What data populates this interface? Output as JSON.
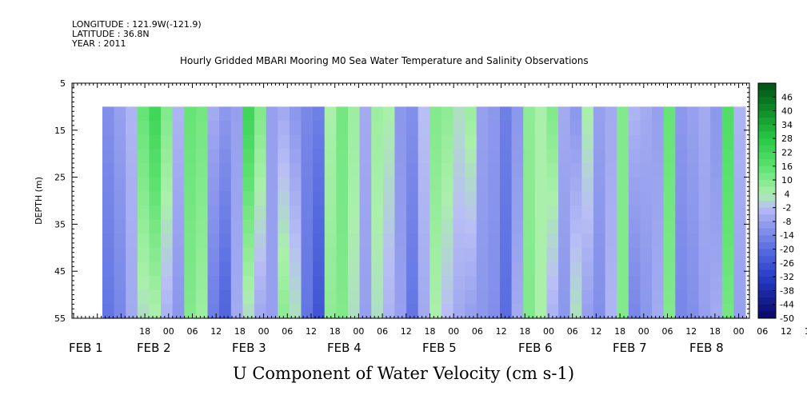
{
  "header": {
    "longitude": "LONGITUDE : 121.9W(-121.9)",
    "latitude": "LATITUDE : 36.8N",
    "year": "YEAR : 2011"
  },
  "chart_data": {
    "type": "heatmap",
    "title": "Hourly Gridded MBARI Mooring M0 Sea Water Temperature and Salinity Observations",
    "xlabel": "U Component of Water Velocity (cm s-1)",
    "ylabel": "DEPTH (m)",
    "y_ticks": [
      "5",
      "15",
      "25",
      "35",
      "45",
      "55"
    ],
    "ylim": [
      5,
      55
    ],
    "y_inverted": true,
    "x_hour_ticks": [
      "18",
      "00",
      "06",
      "12",
      "18",
      "00",
      "06",
      "12",
      "18",
      "00",
      "06",
      "12",
      "18",
      "00",
      "06",
      "12",
      "18",
      "00",
      "06",
      "12",
      "18",
      "00",
      "06",
      "12",
      "18",
      "00",
      "06",
      "12",
      "18",
      "00",
      "06",
      "12"
    ],
    "x_date_labels": [
      "FEB  1",
      "FEB  2",
      "FEB  3",
      "FEB  4",
      "FEB  5",
      "FEB  6",
      "FEB  7",
      "FEB  8"
    ],
    "colorbar_ticks": [
      "46",
      "40",
      "34",
      "28",
      "22",
      "16",
      "10",
      "4",
      "-2",
      "-8",
      "-14",
      "-20",
      "-26",
      "-32",
      "-38",
      "-44",
      "-50"
    ],
    "colorbar_range": [
      -50,
      52
    ],
    "data_depth_range": [
      10,
      55
    ],
    "columns": [
      {
        "time": "FEB 1 19:00",
        "u_top": -12,
        "u_bottom": -18
      },
      {
        "time": "FEB 1 22:00",
        "u_top": -8,
        "u_bottom": -14
      },
      {
        "time": "FEB 2 01:00",
        "u_top": -4,
        "u_bottom": -6
      },
      {
        "time": "FEB 2 04:00",
        "u_top": 14,
        "u_bottom": 2
      },
      {
        "time": "FEB 2 07:00",
        "u_top": 22,
        "u_bottom": 4
      },
      {
        "time": "FEB 2 10:00",
        "u_top": 10,
        "u_bottom": -4
      },
      {
        "time": "FEB 2 13:00",
        "u_top": -4,
        "u_bottom": -10
      },
      {
        "time": "FEB 2 16:00",
        "u_top": 14,
        "u_bottom": 10
      },
      {
        "time": "FEB 2 19:00",
        "u_top": 12,
        "u_bottom": 6
      },
      {
        "time": "FEB 2 22:00",
        "u_top": -6,
        "u_bottom": -16
      },
      {
        "time": "FEB 3 01:00",
        "u_top": -10,
        "u_bottom": -22
      },
      {
        "time": "FEB 3 04:00",
        "u_top": -8,
        "u_bottom": -6
      },
      {
        "time": "FEB 3 07:00",
        "u_top": 22,
        "u_bottom": 2
      },
      {
        "time": "FEB 3 10:00",
        "u_top": 10,
        "u_bottom": -6
      },
      {
        "time": "FEB 3 13:00",
        "u_top": -8,
        "u_bottom": -8
      },
      {
        "time": "FEB 3 16:00",
        "u_top": -6,
        "u_bottom": 8
      },
      {
        "time": "FEB 3 19:00",
        "u_top": -10,
        "u_bottom": 2
      },
      {
        "time": "FEB 3 22:00",
        "u_top": -14,
        "u_bottom": -18
      },
      {
        "time": "FEB 4 01:00",
        "u_top": -16,
        "u_bottom": -26
      },
      {
        "time": "FEB 4 04:00",
        "u_top": 4,
        "u_bottom": 8
      },
      {
        "time": "FEB 4 07:00",
        "u_top": 12,
        "u_bottom": 10
      },
      {
        "time": "FEB 4 10:00",
        "u_top": 6,
        "u_bottom": 2
      },
      {
        "time": "FEB 4 13:00",
        "u_top": -6,
        "u_bottom": -8
      },
      {
        "time": "FEB 4 16:00",
        "u_top": 6,
        "u_bottom": 2
      },
      {
        "time": "FEB 4 19:00",
        "u_top": 4,
        "u_bottom": -4
      },
      {
        "time": "FEB 4 22:00",
        "u_top": -10,
        "u_bottom": -8
      },
      {
        "time": "FEB 5 01:00",
        "u_top": -12,
        "u_bottom": -18
      },
      {
        "time": "FEB 5 04:00",
        "u_top": -2,
        "u_bottom": -6
      },
      {
        "time": "FEB 5 07:00",
        "u_top": 10,
        "u_bottom": 4
      },
      {
        "time": "FEB 5 10:00",
        "u_top": 8,
        "u_bottom": -2
      },
      {
        "time": "FEB 5 13:00",
        "u_top": 2,
        "u_bottom": -6
      },
      {
        "time": "FEB 5 16:00",
        "u_top": 6,
        "u_bottom": -8
      },
      {
        "time": "FEB 5 19:00",
        "u_top": -8,
        "u_bottom": -10
      },
      {
        "time": "FEB 5 22:00",
        "u_top": -10,
        "u_bottom": -12
      },
      {
        "time": "FEB 6 01:00",
        "u_top": -16,
        "u_bottom": -20
      },
      {
        "time": "FEB 6 04:00",
        "u_top": -10,
        "u_bottom": -6
      },
      {
        "time": "FEB 6 07:00",
        "u_top": 8,
        "u_bottom": 10
      },
      {
        "time": "FEB 6 10:00",
        "u_top": 4,
        "u_bottom": 4
      },
      {
        "time": "FEB 6 13:00",
        "u_top": 10,
        "u_bottom": -4
      },
      {
        "time": "FEB 6 16:00",
        "u_top": -6,
        "u_bottom": -10
      },
      {
        "time": "FEB 6 19:00",
        "u_top": -10,
        "u_bottom": 2
      },
      {
        "time": "FEB 6 22:00",
        "u_top": 4,
        "u_bottom": -8
      },
      {
        "time": "FEB 7 01:00",
        "u_top": -8,
        "u_bottom": -12
      },
      {
        "time": "FEB 7 04:00",
        "u_top": -6,
        "u_bottom": -4
      },
      {
        "time": "FEB 7 07:00",
        "u_top": 10,
        "u_bottom": 10
      },
      {
        "time": "FEB 7 10:00",
        "u_top": -4,
        "u_bottom": -14
      },
      {
        "time": "FEB 7 13:00",
        "u_top": -6,
        "u_bottom": -10
      },
      {
        "time": "FEB 7 16:00",
        "u_top": -8,
        "u_bottom": -6
      },
      {
        "time": "FEB 7 19:00",
        "u_top": 14,
        "u_bottom": 10
      },
      {
        "time": "FEB 7 22:00",
        "u_top": -10,
        "u_bottom": -14
      },
      {
        "time": "FEB 8 01:00",
        "u_top": -8,
        "u_bottom": -12
      },
      {
        "time": "FEB 8 04:00",
        "u_top": -6,
        "u_bottom": -8
      },
      {
        "time": "FEB 8 07:00",
        "u_top": -10,
        "u_bottom": -6
      },
      {
        "time": "FEB 8 10:00",
        "u_top": 18,
        "u_bottom": 12
      },
      {
        "time": "FEB 8 13:00",
        "u_top": -4,
        "u_bottom": -8
      }
    ]
  }
}
